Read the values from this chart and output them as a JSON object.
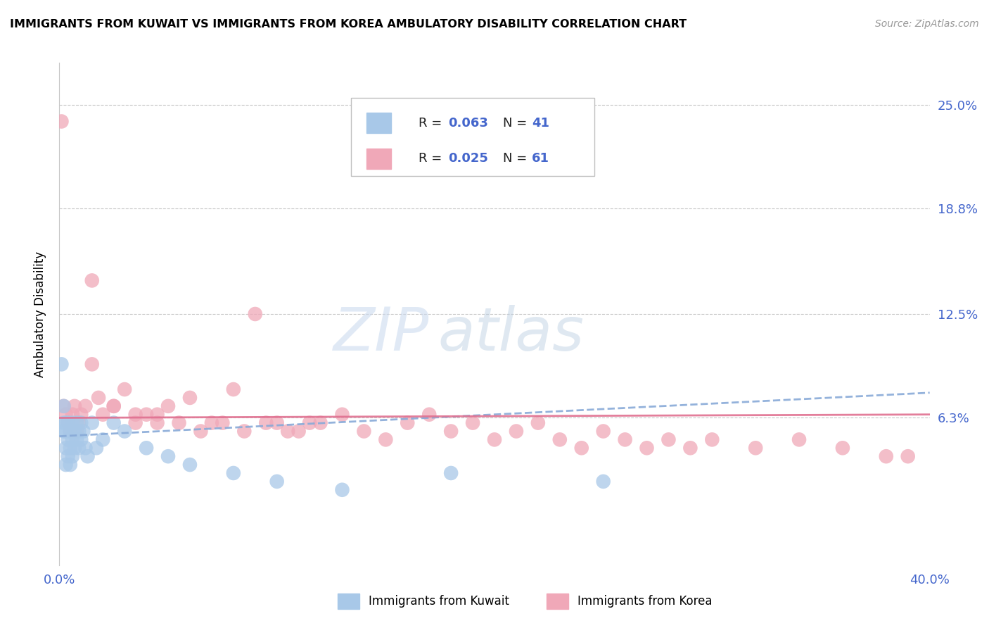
{
  "title": "IMMIGRANTS FROM KUWAIT VS IMMIGRANTS FROM KOREA AMBULATORY DISABILITY CORRELATION CHART",
  "source": "Source: ZipAtlas.com",
  "ylabel": "Ambulatory Disability",
  "legend_label_kuwait": "Immigrants from Kuwait",
  "legend_label_korea": "Immigrants from Korea",
  "ytick_labels": [
    "6.3%",
    "12.5%",
    "18.8%",
    "25.0%"
  ],
  "ytick_values": [
    0.063,
    0.125,
    0.188,
    0.25
  ],
  "xmin": 0.0,
  "xmax": 0.4,
  "ymin": -0.025,
  "ymax": 0.275,
  "color_kuwait_fill": "#a8c8e8",
  "color_kuwait_edge": "#7aaed0",
  "color_korea_fill": "#f0a8b8",
  "color_korea_edge": "#d88098",
  "color_kuwait_line": "#88aad8",
  "color_korea_line": "#e07090",
  "color_axis_labels": "#4466cc",
  "watermark_zip_color": "#c0d0e8",
  "watermark_atlas_color": "#b8c8e0",
  "kuwait_x": [
    0.001,
    0.002,
    0.002,
    0.002,
    0.003,
    0.003,
    0.003,
    0.003,
    0.004,
    0.004,
    0.004,
    0.005,
    0.005,
    0.005,
    0.006,
    0.006,
    0.006,
    0.007,
    0.007,
    0.008,
    0.008,
    0.009,
    0.009,
    0.01,
    0.01,
    0.011,
    0.012,
    0.013,
    0.015,
    0.017,
    0.02,
    0.025,
    0.03,
    0.04,
    0.05,
    0.06,
    0.08,
    0.1,
    0.13,
    0.18,
    0.25
  ],
  "kuwait_y": [
    0.095,
    0.06,
    0.07,
    0.055,
    0.06,
    0.055,
    0.045,
    0.035,
    0.06,
    0.05,
    0.04,
    0.055,
    0.045,
    0.035,
    0.06,
    0.05,
    0.04,
    0.055,
    0.045,
    0.06,
    0.05,
    0.055,
    0.045,
    0.06,
    0.05,
    0.055,
    0.045,
    0.04,
    0.06,
    0.045,
    0.05,
    0.06,
    0.055,
    0.045,
    0.04,
    0.035,
    0.03,
    0.025,
    0.02,
    0.03,
    0.025
  ],
  "korea_x": [
    0.001,
    0.002,
    0.003,
    0.004,
    0.005,
    0.006,
    0.007,
    0.008,
    0.009,
    0.01,
    0.012,
    0.015,
    0.018,
    0.02,
    0.025,
    0.03,
    0.035,
    0.04,
    0.045,
    0.05,
    0.06,
    0.07,
    0.08,
    0.09,
    0.1,
    0.11,
    0.12,
    0.13,
    0.14,
    0.15,
    0.16,
    0.17,
    0.18,
    0.19,
    0.2,
    0.21,
    0.22,
    0.23,
    0.24,
    0.25,
    0.26,
    0.27,
    0.28,
    0.29,
    0.3,
    0.32,
    0.34,
    0.36,
    0.38,
    0.39,
    0.015,
    0.025,
    0.035,
    0.045,
    0.055,
    0.065,
    0.075,
    0.085,
    0.095,
    0.105,
    0.115
  ],
  "korea_y": [
    0.24,
    0.07,
    0.065,
    0.06,
    0.055,
    0.065,
    0.07,
    0.055,
    0.06,
    0.065,
    0.07,
    0.145,
    0.075,
    0.065,
    0.07,
    0.08,
    0.065,
    0.065,
    0.06,
    0.07,
    0.075,
    0.06,
    0.08,
    0.125,
    0.06,
    0.055,
    0.06,
    0.065,
    0.055,
    0.05,
    0.06,
    0.065,
    0.055,
    0.06,
    0.05,
    0.055,
    0.06,
    0.05,
    0.045,
    0.055,
    0.05,
    0.045,
    0.05,
    0.045,
    0.05,
    0.045,
    0.05,
    0.045,
    0.04,
    0.04,
    0.095,
    0.07,
    0.06,
    0.065,
    0.06,
    0.055,
    0.06,
    0.055,
    0.06,
    0.055,
    0.06
  ],
  "kuwait_trend_start": 0.052,
  "kuwait_trend_end": 0.078,
  "korea_trend_start": 0.063,
  "korea_trend_end": 0.065
}
